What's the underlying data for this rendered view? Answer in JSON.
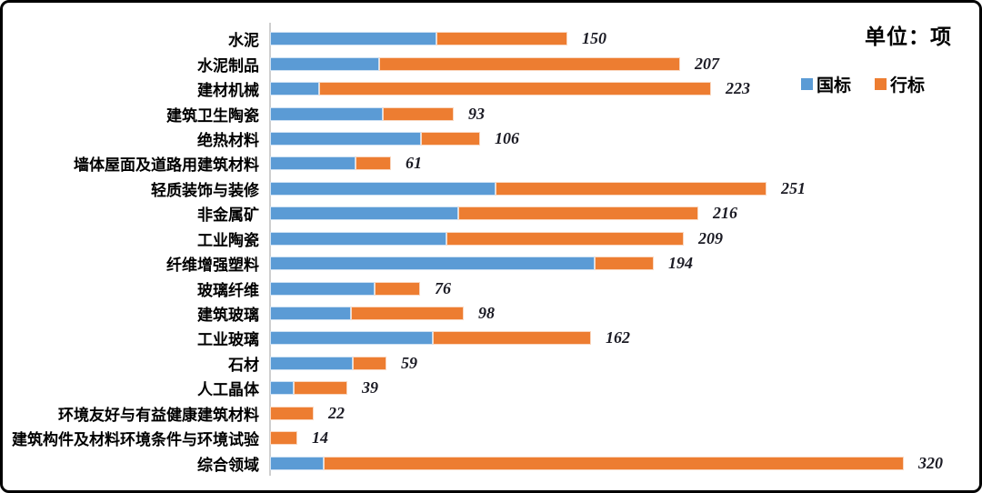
{
  "unit_label": "单位：项",
  "chart_data": {
    "type": "bar",
    "orientation": "horizontal",
    "stacked": true,
    "legend_position": "top-right",
    "grid": false,
    "xlim": [
      0,
      320
    ],
    "categories": [
      "水泥",
      "水泥制品",
      "建材机械",
      "建筑卫生陶瓷",
      "绝热材料",
      "墙体屋面及道路用建筑材料",
      "轻质装饰与装修",
      "非金属矿",
      "工业陶瓷",
      "纤维增强塑料",
      "玻璃纤维",
      "建筑玻璃",
      "工业玻璃",
      "石材",
      "人工晶体",
      "环境友好与有益健康建筑材料",
      "建筑构件及材料环境条件与环境试验",
      "综合领域"
    ],
    "series": [
      {
        "name": "国标",
        "color": "#5B9BD5",
        "values": [
          84,
          55,
          25,
          57,
          76,
          43,
          114,
          95,
          89,
          164,
          53,
          41,
          82,
          42,
          12,
          0,
          0,
          27
        ]
      },
      {
        "name": "行标",
        "color": "#ED7D31",
        "values": [
          66,
          152,
          198,
          36,
          30,
          18,
          137,
          121,
          120,
          30,
          23,
          57,
          80,
          17,
          27,
          22,
          14,
          293
        ]
      }
    ],
    "totals": [
      150,
      207,
      223,
      93,
      106,
      61,
      251,
      216,
      209,
      194,
      76,
      98,
      162,
      59,
      39,
      22,
      14,
      320
    ]
  }
}
